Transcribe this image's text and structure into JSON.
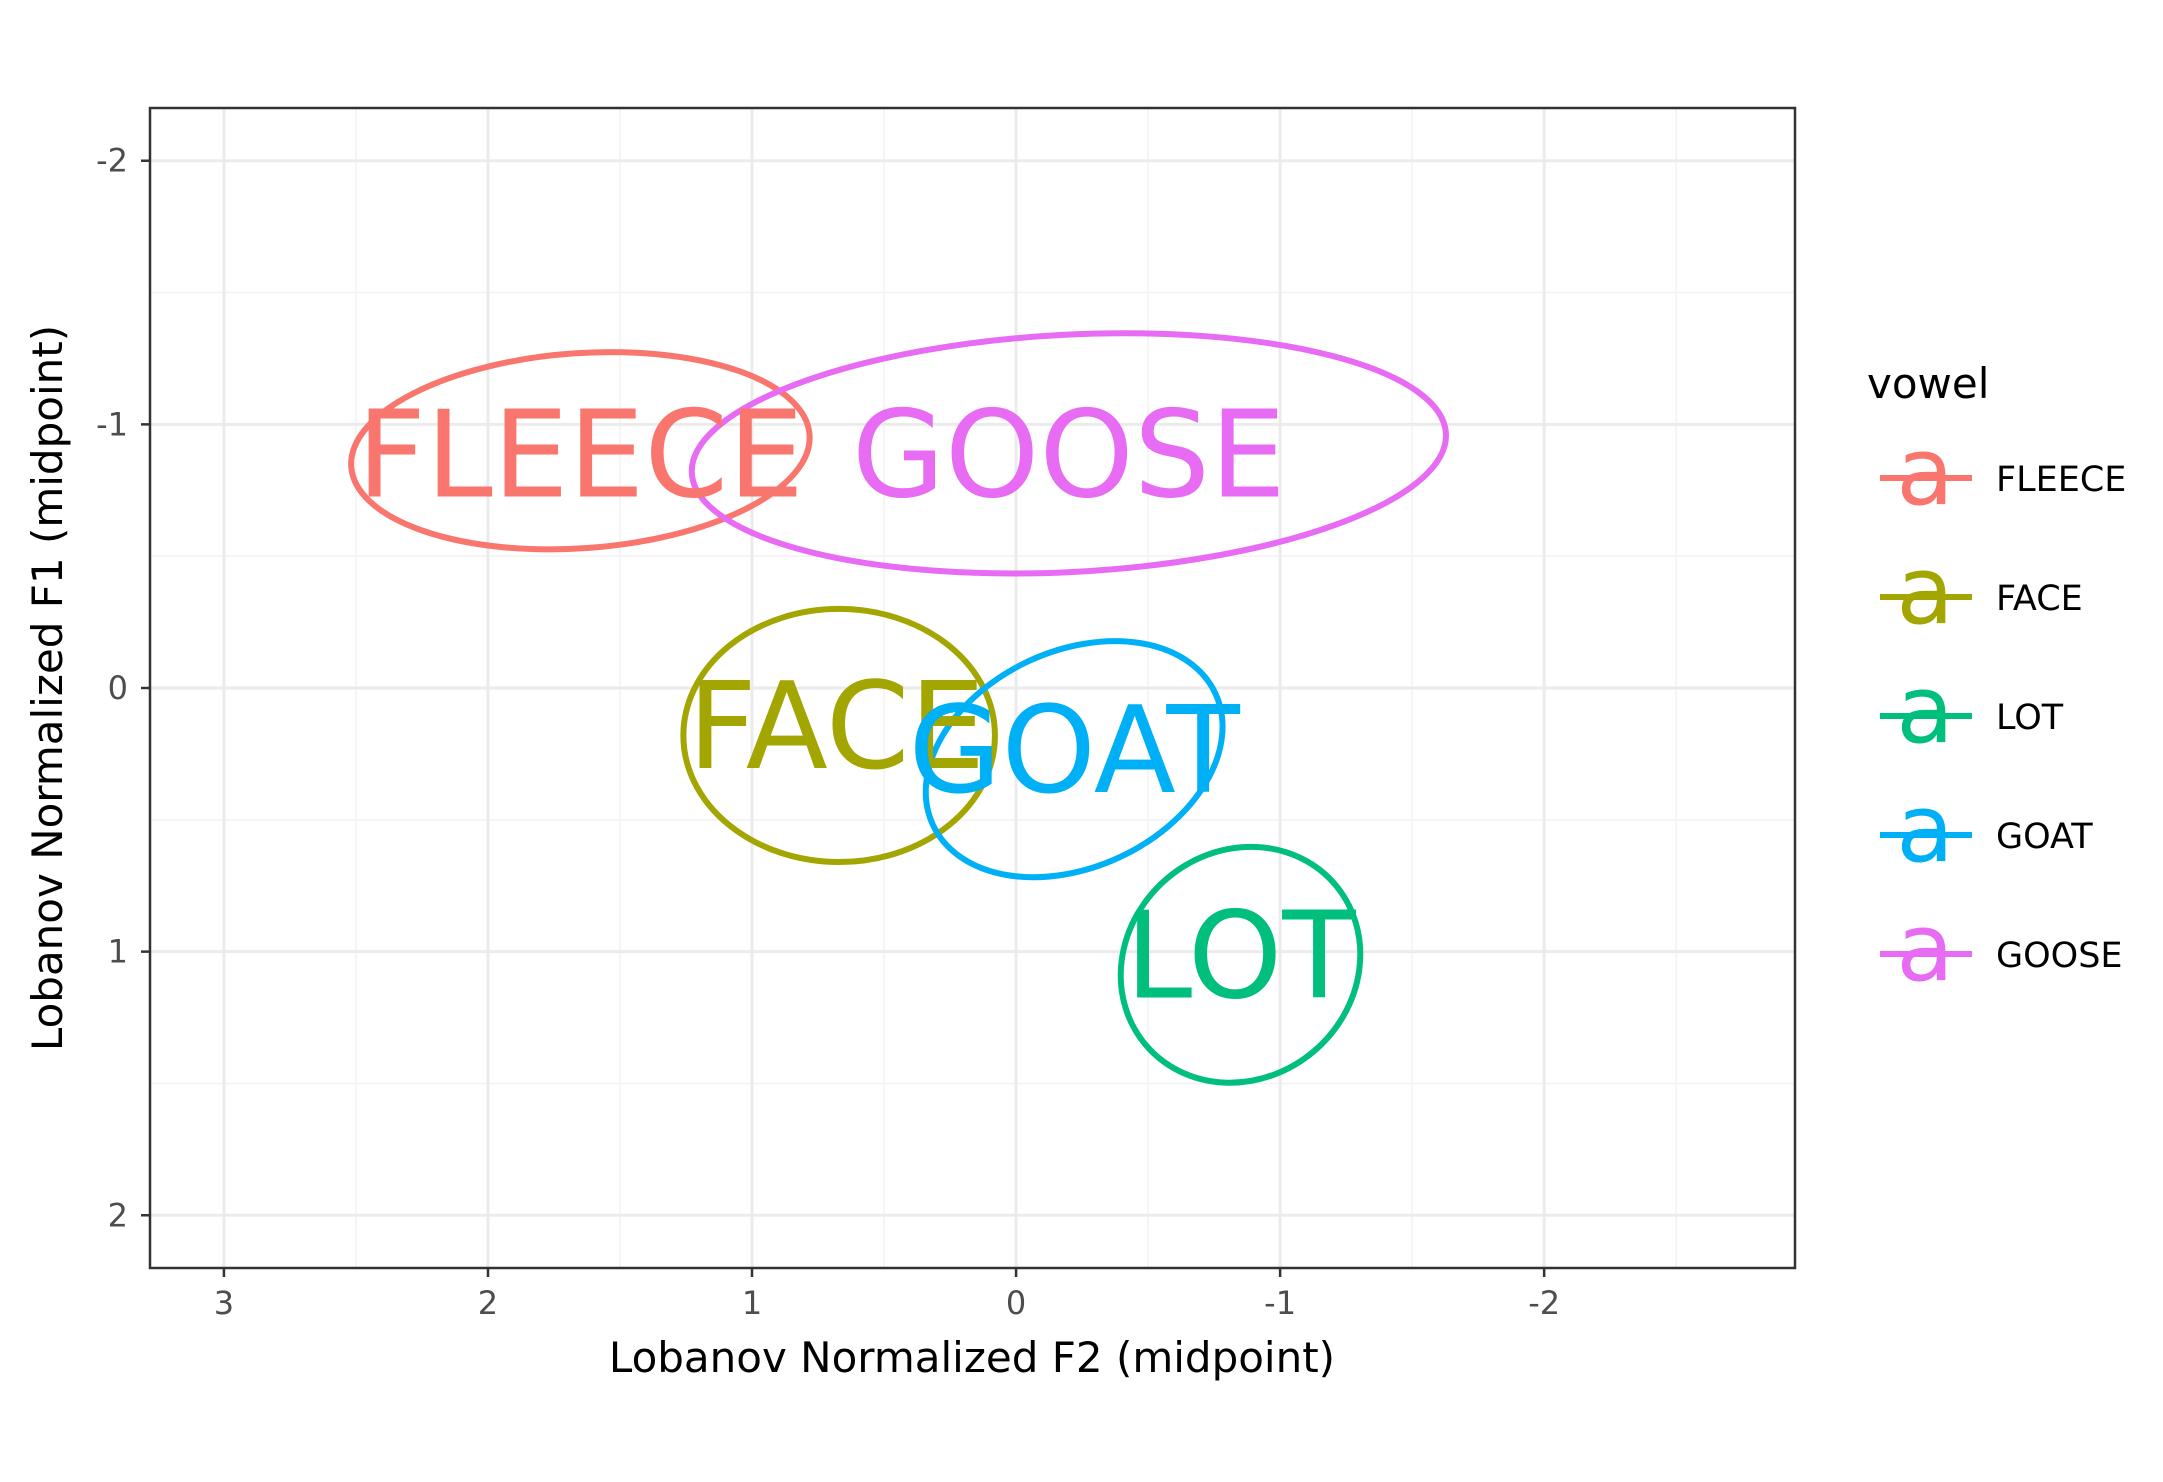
{
  "chart_data": {
    "type": "scatter",
    "xlabel": "Lobanov Normalized F2 (midpoint)",
    "ylabel": "Lobanov Normalized F1 (midpoint)",
    "x_reversed": true,
    "y_reversed": true,
    "xlim": [
      3.28,
      -2.95
    ],
    "ylim": [
      -2.2,
      2.2
    ],
    "x_ticks": [
      3,
      2,
      1,
      0,
      -1,
      -2
    ],
    "x_tick_labels": [
      "3",
      "2",
      "1",
      "0",
      "-1",
      "-2"
    ],
    "y_ticks": [
      -2,
      -1,
      0,
      1,
      2
    ],
    "y_tick_labels": [
      "-2",
      "-1",
      "0",
      "1",
      "2"
    ],
    "grid": true,
    "legend": {
      "title": "vowel",
      "position": "right",
      "key_glyph": "a"
    },
    "series": [
      {
        "name": "FLEECE",
        "color": "#F8766D",
        "label_x": 1.65,
        "label_y": -0.88,
        "ellipse_center": [
          1.65,
          -0.9
        ],
        "ellipse_semi_axes": [
          0.87,
          0.37
        ],
        "ellipse_angle_deg": -4
      },
      {
        "name": "FACE",
        "color": "#A3A500",
        "label_x": 0.68,
        "label_y": 0.15,
        "ellipse_center": [
          0.67,
          0.18
        ],
        "ellipse_semi_axes": [
          0.59,
          0.48
        ],
        "ellipse_angle_deg": 0
      },
      {
        "name": "LOT",
        "color": "#00BF7D",
        "label_x": -0.85,
        "label_y": 1.02,
        "ellipse_center": [
          -0.85,
          1.05
        ],
        "ellipse_semi_axes": [
          0.47,
          0.43
        ],
        "ellipse_angle_deg": -40
      },
      {
        "name": "GOAT",
        "color": "#00B0F6",
        "label_x": -0.22,
        "label_y": 0.24,
        "ellipse_center": [
          -0.22,
          0.27
        ],
        "ellipse_semi_axes": [
          0.59,
          0.41
        ],
        "ellipse_angle_deg": -25
      },
      {
        "name": "GOOSE",
        "color": "#E76BF3",
        "label_x": -0.2,
        "label_y": -0.88,
        "ellipse_center": [
          -0.2,
          -0.89
        ],
        "ellipse_semi_axes": [
          1.43,
          0.45
        ],
        "ellipse_angle_deg": -3
      }
    ]
  }
}
